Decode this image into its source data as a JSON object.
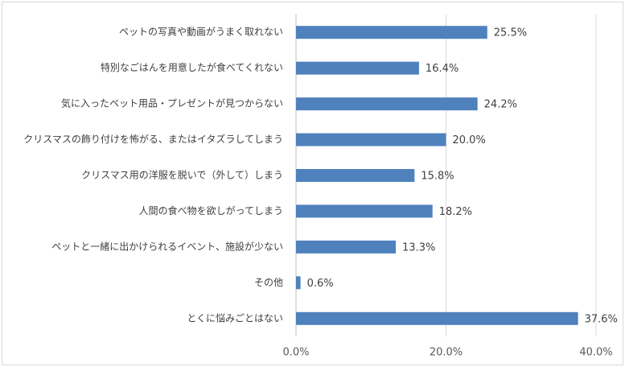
{
  "chart_data": {
    "type": "bar",
    "orientation": "horizontal",
    "categories": [
      "ペットの写真や動画がうまく取れない",
      "特別なごはんを用意したが食べてくれない",
      "気に入ったペット用品・プレゼントが見つからない",
      "クリスマスの飾り付けを怖がる、またはイタズラしてしまう",
      "クリスマス用の洋服を脱いで（外して）しまう",
      "人間の食べ物を欲しがってしまう",
      "ペットと一緒に出かけられるイベント、施設が少ない",
      "その他",
      "とくに悩みごとはない"
    ],
    "values": [
      25.5,
      16.4,
      24.2,
      20.0,
      15.8,
      18.2,
      13.3,
      0.6,
      37.6
    ],
    "value_labels": [
      "25.5%",
      "16.4%",
      "24.2%",
      "20.0%",
      "15.8%",
      "18.2%",
      "13.3%",
      "0.6%",
      "37.6%"
    ],
    "xlim": [
      0,
      40
    ],
    "x_ticks": [
      "0.0%",
      "20.0%",
      "40.0%"
    ],
    "x_tick_values": [
      0,
      20,
      40
    ],
    "grid": true,
    "bar_color": "#4f81bd",
    "grid_color": "#d9d9d9"
  }
}
